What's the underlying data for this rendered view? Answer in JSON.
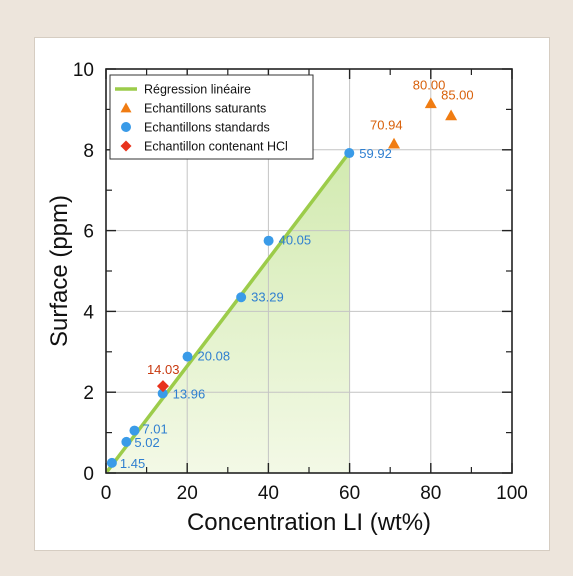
{
  "chart_data": {
    "type": "scatter",
    "xlabel": "Concentration LI (wt%)",
    "ylabel": "Surface (ppm)",
    "xlim": [
      0,
      100
    ],
    "ylim": [
      0,
      10
    ],
    "x_ticks": [
      0,
      20,
      40,
      60,
      80,
      100
    ],
    "y_ticks": [
      0,
      2,
      4,
      6,
      8,
      10
    ],
    "grid": true,
    "legend_position": "top-left",
    "legend": [
      {
        "label": "Régression linéaire",
        "marker": "line",
        "color": "#9ccc4a"
      },
      {
        "label": "Echantillons saturants",
        "marker": "triangle",
        "color": "#f07c12"
      },
      {
        "label": "Echantillons standards",
        "marker": "circle",
        "color": "#3a9be8"
      },
      {
        "label": "Echantillon contenant HCl",
        "marker": "diamond",
        "color": "#e8321c"
      }
    ],
    "regression": {
      "name": "Régression linéaire",
      "color": "#9ccc4a",
      "x_start": 0.5,
      "x_end": 60,
      "slope": 0.1324,
      "intercept": 0.0,
      "shaded": true
    },
    "series": [
      {
        "name": "Echantillons standards",
        "marker": "circle",
        "color": "#3a9be8",
        "label_color": "#2f7fd0",
        "points": [
          {
            "x": 1.45,
            "y": 0.25,
            "label": "1.45"
          },
          {
            "x": 5.02,
            "y": 0.77,
            "label": "5.02"
          },
          {
            "x": 7.01,
            "y": 1.05,
            "label": "7.01"
          },
          {
            "x": 13.96,
            "y": 1.97,
            "label": "13.96"
          },
          {
            "x": 20.08,
            "y": 2.88,
            "label": "20.08"
          },
          {
            "x": 33.29,
            "y": 4.35,
            "label": "33.29"
          },
          {
            "x": 40.05,
            "y": 5.75,
            "label": "40.05"
          },
          {
            "x": 59.92,
            "y": 7.92,
            "label": "59.92"
          }
        ]
      },
      {
        "name": "Echantillons saturants",
        "marker": "triangle",
        "color": "#f07c12",
        "label_color": "#d8600a",
        "points": [
          {
            "x": 70.94,
            "y": 8.15,
            "label": "70.94"
          },
          {
            "x": 80.0,
            "y": 9.15,
            "label": "80.00"
          },
          {
            "x": 85.0,
            "y": 8.85,
            "label": "85.00"
          }
        ]
      },
      {
        "name": "Echantillon contenant HCl",
        "marker": "diamond",
        "color": "#e8321c",
        "label_color": "#c83a10",
        "points": [
          {
            "x": 14.03,
            "y": 2.15,
            "label": "14.03"
          }
        ]
      }
    ]
  }
}
